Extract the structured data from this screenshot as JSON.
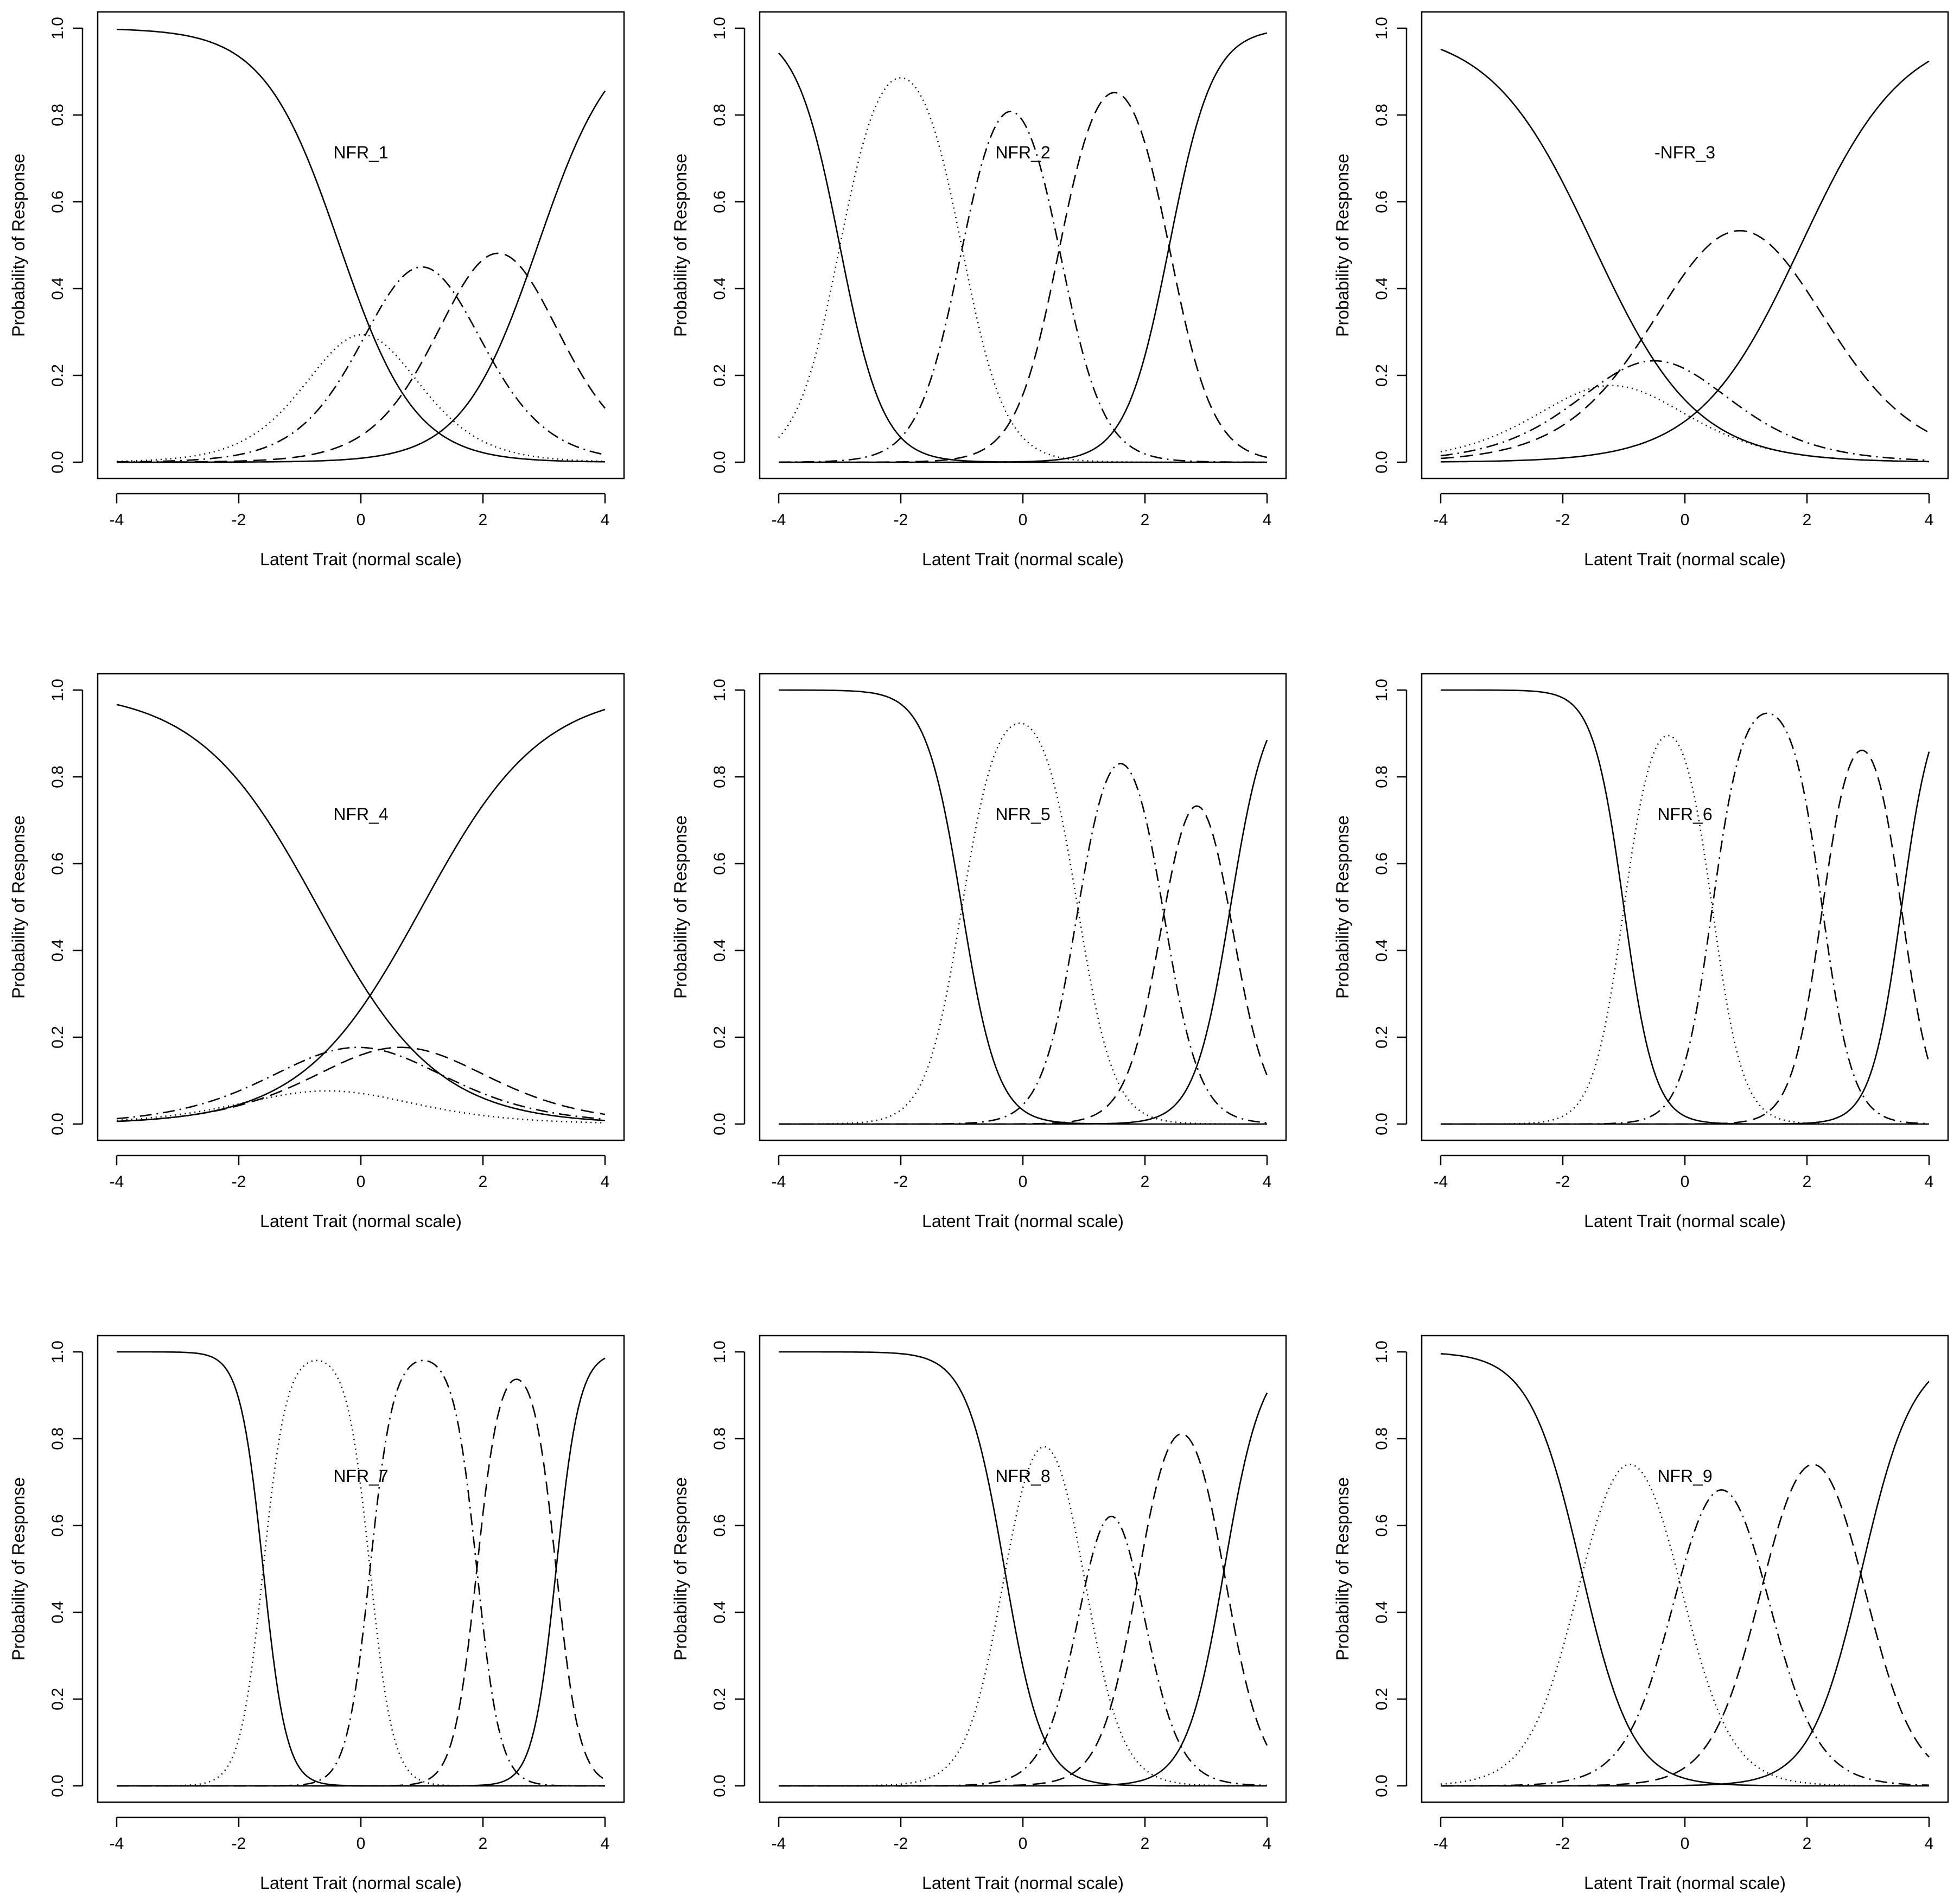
{
  "style_lines": {
    "solid": "",
    "dotted": "2 7",
    "dashdot": "22 9 3 9",
    "dashed": "24 12"
  },
  "chart_data": [
    {
      "type": "line",
      "label": "NFR_1",
      "xlabel": "Latent Trait (normal scale)",
      "ylabel": "Probability of Response",
      "xlim": [
        -4,
        4
      ],
      "ylim": [
        0,
        1
      ],
      "xticks": [
        "-4",
        "-2",
        "0",
        "2",
        "4"
      ],
      "yticks": [
        "0.0",
        "0.2",
        "0.4",
        "0.6",
        "0.8",
        "1.0"
      ],
      "a": 0.95,
      "b": [
        -0.35,
        0.4,
        1.6,
        2.9
      ]
    },
    {
      "type": "line",
      "label": "NFR_2",
      "xlabel": "Latent Trait (normal scale)",
      "ylabel": "Probability of Response",
      "xlim": [
        -4,
        4
      ],
      "ylim": [
        0,
        1
      ],
      "xticks": [
        "-4",
        "-2",
        "0",
        "2",
        "4"
      ],
      "yticks": [
        "0.0",
        "0.2",
        "0.4",
        "0.6",
        "0.8",
        "1.0"
      ],
      "a": 1.65,
      "b": [
        -3.0,
        -1.0,
        0.6,
        2.4
      ]
    },
    {
      "type": "line",
      "label": "-NFR_3",
      "xlabel": "Latent Trait (normal scale)",
      "ylabel": "Probability of Response",
      "xlim": [
        -4,
        4
      ],
      "ylim": [
        0,
        1
      ],
      "xticks": [
        "-4",
        "-2",
        "0",
        "2",
        "4"
      ],
      "yticks": [
        "0.0",
        "0.2",
        "0.4",
        "0.6",
        "0.8",
        "1.0"
      ],
      "a": 0.7,
      "b": [
        -1.5,
        -0.9,
        -0.1,
        1.9
      ]
    },
    {
      "type": "line",
      "label": "NFR_4",
      "xlabel": "Latent Trait (normal scale)",
      "ylabel": "Probability of Response",
      "xlim": [
        -4,
        4
      ],
      "ylim": [
        0,
        1
      ],
      "xticks": [
        "-4",
        "-2",
        "0",
        "2",
        "4"
      ],
      "yticks": [
        "0.0",
        "0.2",
        "0.4",
        "0.6",
        "0.8",
        "1.0"
      ],
      "a": 0.6,
      "b": [
        -0.7,
        -0.4,
        0.3,
        1.0
      ]
    },
    {
      "type": "line",
      "label": "NFR_5",
      "xlabel": "Latent Trait (normal scale)",
      "ylabel": "Probability of Response",
      "xlim": [
        -4,
        4
      ],
      "ylim": [
        0,
        1
      ],
      "xticks": [
        "-4",
        "-2",
        "0",
        "2",
        "4"
      ],
      "yticks": [
        "0.0",
        "0.2",
        "0.4",
        "0.6",
        "0.8",
        "1.0"
      ],
      "a": 2.0,
      "b": [
        -1.0,
        0.9,
        2.3,
        3.4
      ]
    },
    {
      "type": "line",
      "label": "NFR_6",
      "xlabel": "Latent Trait (normal scale)",
      "ylabel": "Probability of Response",
      "xlim": [
        -4,
        4
      ],
      "ylim": [
        0,
        1
      ],
      "xticks": [
        "-4",
        "-2",
        "0",
        "2",
        "4"
      ],
      "yticks": [
        "0.0",
        "0.2",
        "0.4",
        "0.6",
        "0.8",
        "1.0"
      ],
      "a": 2.35,
      "b": [
        -1.0,
        0.45,
        2.25,
        3.55
      ]
    },
    {
      "type": "line",
      "label": "NFR_7",
      "xlabel": "Latent Trait (normal scale)",
      "ylabel": "Probability of Response",
      "xlim": [
        -4,
        4
      ],
      "ylim": [
        0,
        1
      ],
      "xticks": [
        "-4",
        "-2",
        "0",
        "2",
        "4"
      ],
      "yticks": [
        "0.0",
        "0.2",
        "0.4",
        "0.6",
        "0.8",
        "1.0"
      ],
      "a": 3.1,
      "b": [
        -1.6,
        0.15,
        1.9,
        3.2
      ]
    },
    {
      "type": "line",
      "label": "NFR_8",
      "xlabel": "Latent Trait (normal scale)",
      "ylabel": "Probability of Response",
      "xlim": [
        -4,
        4
      ],
      "ylim": [
        0,
        1
      ],
      "xticks": [
        "-4",
        "-2",
        "0",
        "2",
        "4"
      ],
      "yticks": [
        "0.0",
        "0.2",
        "0.4",
        "0.6",
        "0.8",
        "1.0"
      ],
      "a": 1.9,
      "b": [
        -0.3,
        1.0,
        1.9,
        3.3
      ]
    },
    {
      "type": "line",
      "label": "NFR_9",
      "xlabel": "Latent Trait (normal scale)",
      "ylabel": "Probability of Response",
      "xlim": [
        -4,
        4
      ],
      "ylim": [
        0,
        1
      ],
      "xticks": [
        "-4",
        "-2",
        "0",
        "2",
        "4"
      ],
      "yticks": [
        "0.0",
        "0.2",
        "0.4",
        "0.6",
        "0.8",
        "1.0"
      ],
      "a": 1.4,
      "b": [
        -1.7,
        -0.1,
        1.3,
        2.9
      ]
    }
  ]
}
